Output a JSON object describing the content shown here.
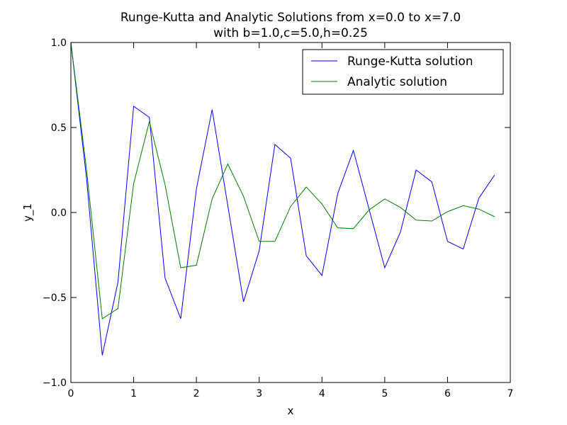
{
  "chart_data": {
    "type": "line",
    "title": "Runge-Kutta and Analytic Solutions from x=0.0 to x=7.0",
    "subtitle": "with b=1.0,c=5.0,h=0.25",
    "xlabel": "x",
    "ylabel": "y_1",
    "xlim": [
      0,
      7
    ],
    "ylim": [
      -1.0,
      1.0
    ],
    "x_ticks": [
      0,
      1,
      2,
      3,
      4,
      5,
      6,
      7
    ],
    "x_tick_labels": [
      "0",
      "1",
      "2",
      "3",
      "4",
      "5",
      "6",
      "7"
    ],
    "y_ticks": [
      -1.0,
      -0.5,
      0.0,
      0.5,
      1.0
    ],
    "y_tick_labels": [
      "−1.0",
      "−0.5",
      "0.0",
      "0.5",
      "1.0"
    ],
    "grid": false,
    "legend_position": "top-right",
    "x": [
      0,
      0.25,
      0.5,
      0.75,
      1.0,
      1.25,
      1.5,
      1.75,
      2.0,
      2.25,
      2.5,
      2.75,
      3.0,
      3.25,
      3.5,
      3.75,
      4.0,
      4.25,
      4.5,
      4.75,
      5.0,
      5.25,
      5.5,
      5.75,
      6.0,
      6.25,
      6.5,
      6.75
    ],
    "series": [
      {
        "name": "Runge-Kutta solution",
        "color": "#0000ff",
        "values": [
          1.0,
          0.2,
          -0.84,
          -0.41,
          0.625,
          0.56,
          -0.385,
          -0.625,
          0.14,
          0.605,
          0.04,
          -0.525,
          -0.225,
          0.4,
          0.32,
          -0.255,
          -0.37,
          0.11,
          0.365,
          0.02,
          -0.325,
          -0.115,
          0.25,
          0.18,
          -0.17,
          -0.215,
          0.085,
          0.22
        ]
      },
      {
        "name": "Analytic solution",
        "color": "#008000",
        "values": [
          1.0,
          0.25,
          -0.625,
          -0.565,
          0.17,
          0.535,
          0.165,
          -0.325,
          -0.31,
          0.08,
          0.285,
          0.095,
          -0.17,
          -0.17,
          0.035,
          0.15,
          0.05,
          -0.09,
          -0.095,
          0.015,
          0.08,
          0.03,
          -0.045,
          -0.05,
          0.005,
          0.04,
          0.02,
          -0.025
        ]
      }
    ]
  }
}
